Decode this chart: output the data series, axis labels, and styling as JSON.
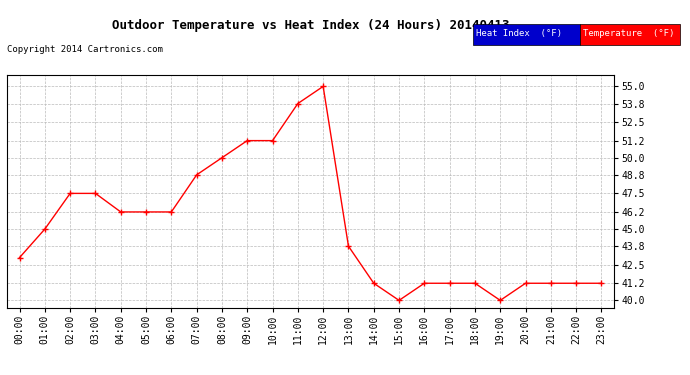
{
  "title": "Outdoor Temperature vs Heat Index (24 Hours) 20140413",
  "copyright": "Copyright 2014 Cartronics.com",
  "x_labels": [
    "00:00",
    "01:00",
    "02:00",
    "03:00",
    "04:00",
    "05:00",
    "06:00",
    "07:00",
    "08:00",
    "09:00",
    "10:00",
    "11:00",
    "12:00",
    "13:00",
    "14:00",
    "15:00",
    "16:00",
    "17:00",
    "18:00",
    "19:00",
    "20:00",
    "21:00",
    "22:00",
    "23:00"
  ],
  "temperature": [
    43.0,
    45.0,
    47.5,
    47.5,
    46.2,
    46.2,
    46.2,
    48.8,
    50.0,
    51.2,
    51.2,
    53.8,
    55.0,
    43.8,
    41.2,
    40.0,
    41.2,
    41.2,
    41.2,
    40.0,
    41.2,
    41.2,
    41.2,
    41.2
  ],
  "heat_index": [
    43.0,
    45.0,
    47.5,
    47.5,
    46.2,
    46.2,
    46.2,
    48.8,
    50.0,
    51.2,
    51.2,
    53.8,
    55.0,
    43.8,
    41.2,
    40.0,
    41.2,
    41.2,
    41.2,
    40.0,
    41.2,
    41.2,
    41.2,
    41.2
  ],
  "temp_color": "#ff0000",
  "heat_color": "#0000cc",
  "ylim_min": 39.5,
  "ylim_max": 55.8,
  "yticks": [
    40.0,
    41.2,
    42.5,
    43.8,
    45.0,
    46.2,
    47.5,
    48.8,
    50.0,
    51.2,
    52.5,
    53.8,
    55.0
  ],
  "bg_color": "#ffffff",
  "grid_color": "#bbbbbb",
  "legend_heat_label": "Heat Index  (°F)",
  "legend_temp_label": "Temperature  (°F)"
}
